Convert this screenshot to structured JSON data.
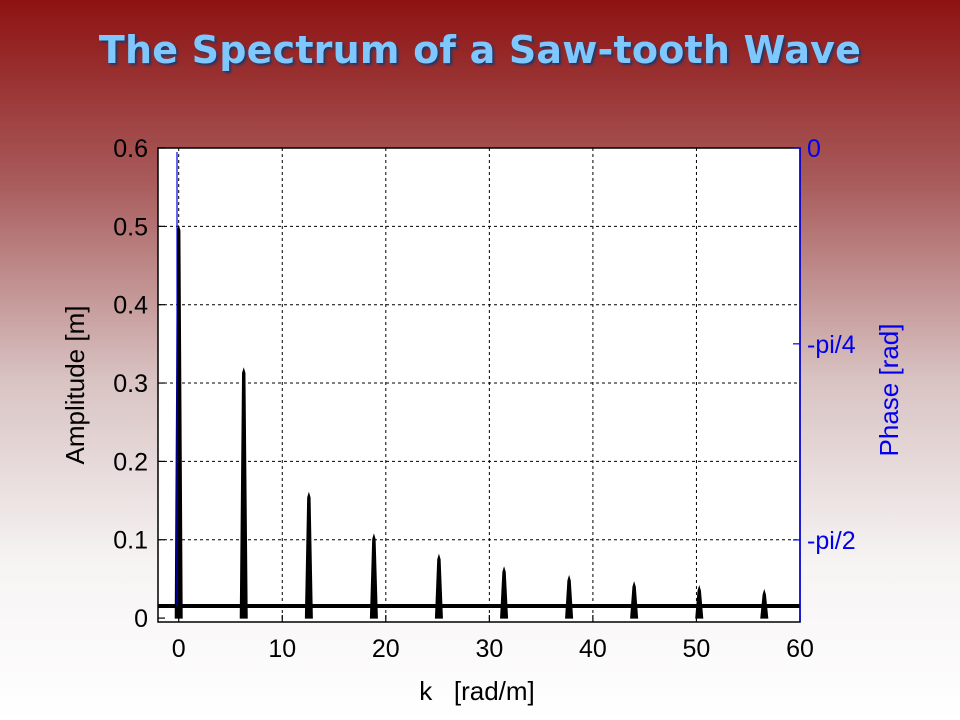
{
  "slide": {
    "title": "The Spectrum of a Saw-tooth Wave"
  },
  "chart_data": {
    "type": "bar",
    "xlabel": "k   [rad/m]",
    "ylabel": "Amplitude [m]",
    "y2label": "Phase [rad]",
    "xlim": [
      -2,
      60
    ],
    "ylim": [
      -0.005,
      0.6
    ],
    "xticks": [
      0,
      10,
      20,
      30,
      40,
      50,
      60
    ],
    "yticks": [
      0,
      0.1,
      0.2,
      0.3,
      0.4,
      0.5,
      0.6
    ],
    "ytick_labels": [
      "0",
      "0.1",
      "0.2",
      "0.3",
      "0.4",
      "0.5",
      "0.6"
    ],
    "y2ticks": [
      {
        "value": 0,
        "label": "0"
      },
      {
        "value": -0.785,
        "label": "-pi/4"
      },
      {
        "value": -1.571,
        "label": "-pi/2"
      }
    ],
    "y2lim": [
      -1.9,
      0
    ],
    "grid": true,
    "series": [
      {
        "x": [
          0,
          6.28,
          12.57,
          18.85,
          25.13,
          31.42,
          37.7,
          43.98,
          50.27,
          56.55
        ],
        "values": [
          0.5,
          0.318,
          0.159,
          0.106,
          0.08,
          0.064,
          0.053,
          0.045,
          0.04,
          0.035
        ],
        "color": "#000000"
      }
    ],
    "colors": {
      "primary_axis": "#000000",
      "secondary_axis": "#0000ee",
      "title": "#7fc8ff"
    }
  }
}
